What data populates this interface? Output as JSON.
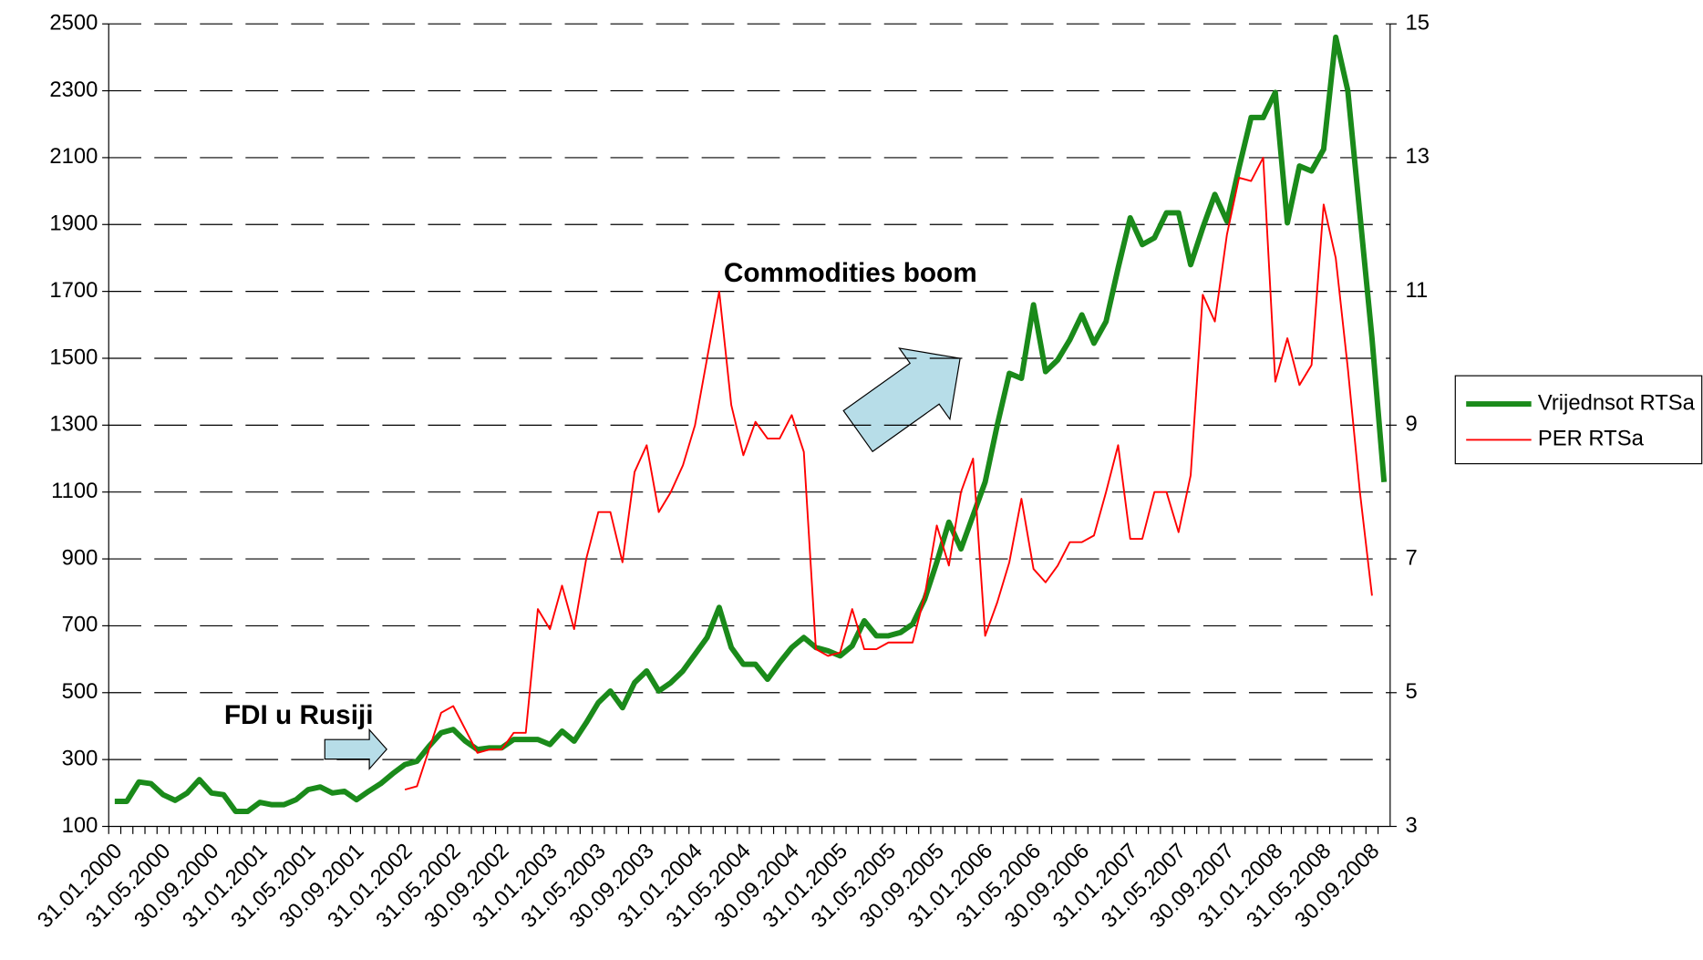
{
  "chart_data": {
    "type": "line",
    "categories": [
      "31.01.2000",
      null,
      null,
      null,
      "31.05.2000",
      null,
      null,
      null,
      "30.09.2000",
      null,
      null,
      null,
      "31.01.2001",
      null,
      null,
      null,
      "31.05.2001",
      null,
      null,
      null,
      "30.09.2001",
      null,
      null,
      null,
      "31.01.2002",
      null,
      null,
      null,
      "31.05.2002",
      null,
      null,
      null,
      "30.09.2002",
      null,
      null,
      null,
      "31.01.2003",
      null,
      null,
      null,
      "31.05.2003",
      null,
      null,
      null,
      "30.09.2003",
      null,
      null,
      null,
      "31.01.2004",
      null,
      null,
      null,
      "31.05.2004",
      null,
      null,
      null,
      "30.09.2004",
      null,
      null,
      null,
      "31.01.2005",
      null,
      null,
      null,
      "31.05.2005",
      null,
      null,
      null,
      "30.09.2005",
      null,
      null,
      null,
      "31.01.2006",
      null,
      null,
      null,
      "31.05.2006",
      null,
      null,
      null,
      "30.09.2006",
      null,
      null,
      null,
      "31.01.2007",
      null,
      null,
      null,
      "31.05.2007",
      null,
      null,
      null,
      "30.09.2007",
      null,
      null,
      null,
      "31.01.2008",
      null,
      null,
      null,
      "31.05.2008",
      null,
      null,
      null,
      "30.09.2008",
      null
    ],
    "series": [
      {
        "name": "Vrijednsot RTSa",
        "color": "#1a8a1a",
        "axis": "y",
        "values": [
          175,
          175,
          233,
          228,
          195,
          178,
          200,
          240,
          200,
          195,
          145,
          145,
          172,
          165,
          165,
          180,
          210,
          218,
          200,
          205,
          180,
          205,
          228,
          258,
          285,
          295,
          340,
          380,
          390,
          355,
          330,
          335,
          335,
          360,
          360,
          360,
          345,
          385,
          355,
          410,
          470,
          505,
          455,
          530,
          565,
          505,
          530,
          565,
          615,
          665,
          755,
          635,
          585,
          585,
          540,
          590,
          635,
          665,
          635,
          625,
          610,
          640,
          715,
          670,
          670,
          680,
          705,
          780,
          890,
          1010,
          930,
          1030,
          1130,
          1300,
          1455,
          1440,
          1660,
          1460,
          1495,
          1555,
          1630,
          1545,
          1610,
          1770,
          1920,
          1840,
          1860,
          1935,
          1935,
          1780,
          1890,
          1990,
          1910,
          2070,
          2220,
          2220,
          2295,
          1905,
          2075,
          2060,
          2125,
          2460,
          2300,
          1930,
          1560,
          1130
        ]
      },
      {
        "name": "PER RTSa",
        "color": "#ff0000",
        "axis": "y2",
        "values": [
          null,
          null,
          null,
          null,
          null,
          null,
          null,
          null,
          null,
          null,
          null,
          null,
          null,
          null,
          null,
          null,
          null,
          null,
          null,
          null,
          null,
          null,
          null,
          null,
          3.55,
          3.6,
          4.15,
          4.7,
          4.8,
          4.45,
          4.1,
          4.15,
          4.15,
          4.4,
          4.4,
          6.25,
          5.95,
          6.6,
          5.95,
          7.0,
          7.7,
          7.7,
          6.95,
          8.3,
          8.7,
          7.7,
          8.0,
          8.4,
          9.0,
          10.0,
          11.0,
          9.3,
          8.55,
          9.05,
          8.8,
          8.8,
          9.15,
          8.6,
          5.65,
          5.55,
          5.6,
          6.25,
          5.65,
          5.65,
          5.75,
          5.75,
          5.75,
          6.45,
          7.5,
          6.9,
          8.0,
          8.5,
          5.85,
          6.35,
          6.95,
          7.9,
          6.85,
          6.65,
          6.9,
          7.25,
          7.25,
          7.35,
          8.0,
          8.7,
          7.3,
          7.3,
          8.0,
          8.0,
          7.4,
          8.25,
          10.95,
          10.55,
          11.85,
          12.7,
          12.65,
          13.0,
          9.65,
          10.3,
          9.6,
          9.9,
          12.3,
          11.5,
          9.85,
          8.0,
          6.45,
          null
        ]
      }
    ],
    "ylim": [
      100,
      2500
    ],
    "yticks": [
      100,
      300,
      500,
      700,
      900,
      1100,
      1300,
      1500,
      1700,
      1900,
      2100,
      2300,
      2500
    ],
    "y2lim": [
      3,
      15
    ],
    "y2ticks": [
      3,
      5,
      7,
      9,
      11,
      13,
      15
    ],
    "grid": true,
    "legend": "right",
    "annotations": [
      {
        "text": "Commodities boom"
      },
      {
        "text": "FDI u Rusiji"
      }
    ]
  }
}
